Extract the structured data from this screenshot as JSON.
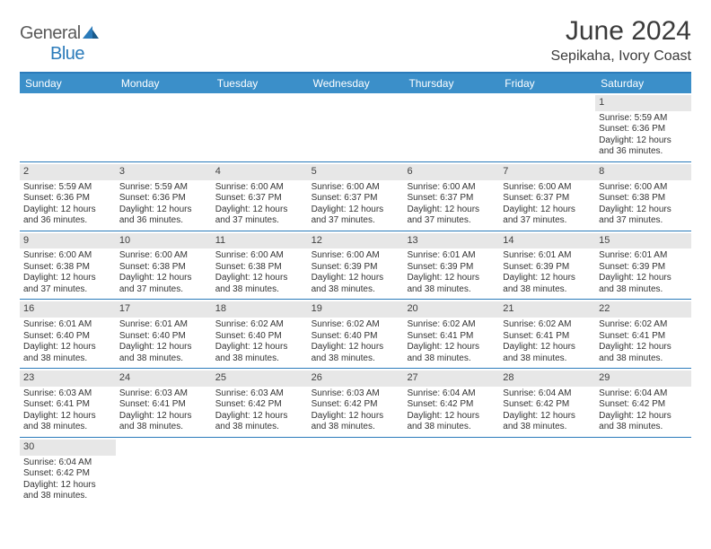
{
  "logo": {
    "text1": "General",
    "text2": "Blue"
  },
  "title": "June 2024",
  "subtitle": "Sepikaha, Ivory Coast",
  "colors": {
    "header_bg": "#3b8fc9",
    "border": "#2b7bba",
    "daynum_bg": "#e7e7e7",
    "text": "#333333"
  },
  "day_names": [
    "Sunday",
    "Monday",
    "Tuesday",
    "Wednesday",
    "Thursday",
    "Friday",
    "Saturday"
  ],
  "weeks": [
    [
      {
        "n": "",
        "sr": "",
        "ss": "",
        "dl": ""
      },
      {
        "n": "",
        "sr": "",
        "ss": "",
        "dl": ""
      },
      {
        "n": "",
        "sr": "",
        "ss": "",
        "dl": ""
      },
      {
        "n": "",
        "sr": "",
        "ss": "",
        "dl": ""
      },
      {
        "n": "",
        "sr": "",
        "ss": "",
        "dl": ""
      },
      {
        "n": "",
        "sr": "",
        "ss": "",
        "dl": ""
      },
      {
        "n": "1",
        "sr": "5:59 AM",
        "ss": "6:36 PM",
        "dl": "12 hours and 36 minutes."
      }
    ],
    [
      {
        "n": "2",
        "sr": "5:59 AM",
        "ss": "6:36 PM",
        "dl": "12 hours and 36 minutes."
      },
      {
        "n": "3",
        "sr": "5:59 AM",
        "ss": "6:36 PM",
        "dl": "12 hours and 36 minutes."
      },
      {
        "n": "4",
        "sr": "6:00 AM",
        "ss": "6:37 PM",
        "dl": "12 hours and 37 minutes."
      },
      {
        "n": "5",
        "sr": "6:00 AM",
        "ss": "6:37 PM",
        "dl": "12 hours and 37 minutes."
      },
      {
        "n": "6",
        "sr": "6:00 AM",
        "ss": "6:37 PM",
        "dl": "12 hours and 37 minutes."
      },
      {
        "n": "7",
        "sr": "6:00 AM",
        "ss": "6:37 PM",
        "dl": "12 hours and 37 minutes."
      },
      {
        "n": "8",
        "sr": "6:00 AM",
        "ss": "6:38 PM",
        "dl": "12 hours and 37 minutes."
      }
    ],
    [
      {
        "n": "9",
        "sr": "6:00 AM",
        "ss": "6:38 PM",
        "dl": "12 hours and 37 minutes."
      },
      {
        "n": "10",
        "sr": "6:00 AM",
        "ss": "6:38 PM",
        "dl": "12 hours and 37 minutes."
      },
      {
        "n": "11",
        "sr": "6:00 AM",
        "ss": "6:38 PM",
        "dl": "12 hours and 38 minutes."
      },
      {
        "n": "12",
        "sr": "6:00 AM",
        "ss": "6:39 PM",
        "dl": "12 hours and 38 minutes."
      },
      {
        "n": "13",
        "sr": "6:01 AM",
        "ss": "6:39 PM",
        "dl": "12 hours and 38 minutes."
      },
      {
        "n": "14",
        "sr": "6:01 AM",
        "ss": "6:39 PM",
        "dl": "12 hours and 38 minutes."
      },
      {
        "n": "15",
        "sr": "6:01 AM",
        "ss": "6:39 PM",
        "dl": "12 hours and 38 minutes."
      }
    ],
    [
      {
        "n": "16",
        "sr": "6:01 AM",
        "ss": "6:40 PM",
        "dl": "12 hours and 38 minutes."
      },
      {
        "n": "17",
        "sr": "6:01 AM",
        "ss": "6:40 PM",
        "dl": "12 hours and 38 minutes."
      },
      {
        "n": "18",
        "sr": "6:02 AM",
        "ss": "6:40 PM",
        "dl": "12 hours and 38 minutes."
      },
      {
        "n": "19",
        "sr": "6:02 AM",
        "ss": "6:40 PM",
        "dl": "12 hours and 38 minutes."
      },
      {
        "n": "20",
        "sr": "6:02 AM",
        "ss": "6:41 PM",
        "dl": "12 hours and 38 minutes."
      },
      {
        "n": "21",
        "sr": "6:02 AM",
        "ss": "6:41 PM",
        "dl": "12 hours and 38 minutes."
      },
      {
        "n": "22",
        "sr": "6:02 AM",
        "ss": "6:41 PM",
        "dl": "12 hours and 38 minutes."
      }
    ],
    [
      {
        "n": "23",
        "sr": "6:03 AM",
        "ss": "6:41 PM",
        "dl": "12 hours and 38 minutes."
      },
      {
        "n": "24",
        "sr": "6:03 AM",
        "ss": "6:41 PM",
        "dl": "12 hours and 38 minutes."
      },
      {
        "n": "25",
        "sr": "6:03 AM",
        "ss": "6:42 PM",
        "dl": "12 hours and 38 minutes."
      },
      {
        "n": "26",
        "sr": "6:03 AM",
        "ss": "6:42 PM",
        "dl": "12 hours and 38 minutes."
      },
      {
        "n": "27",
        "sr": "6:04 AM",
        "ss": "6:42 PM",
        "dl": "12 hours and 38 minutes."
      },
      {
        "n": "28",
        "sr": "6:04 AM",
        "ss": "6:42 PM",
        "dl": "12 hours and 38 minutes."
      },
      {
        "n": "29",
        "sr": "6:04 AM",
        "ss": "6:42 PM",
        "dl": "12 hours and 38 minutes."
      }
    ],
    [
      {
        "n": "30",
        "sr": "6:04 AM",
        "ss": "6:42 PM",
        "dl": "12 hours and 38 minutes."
      },
      {
        "n": "",
        "sr": "",
        "ss": "",
        "dl": ""
      },
      {
        "n": "",
        "sr": "",
        "ss": "",
        "dl": ""
      },
      {
        "n": "",
        "sr": "",
        "ss": "",
        "dl": ""
      },
      {
        "n": "",
        "sr": "",
        "ss": "",
        "dl": ""
      },
      {
        "n": "",
        "sr": "",
        "ss": "",
        "dl": ""
      },
      {
        "n": "",
        "sr": "",
        "ss": "",
        "dl": ""
      }
    ]
  ],
  "labels": {
    "sunrise": "Sunrise:",
    "sunset": "Sunset:",
    "daylight": "Daylight:"
  }
}
